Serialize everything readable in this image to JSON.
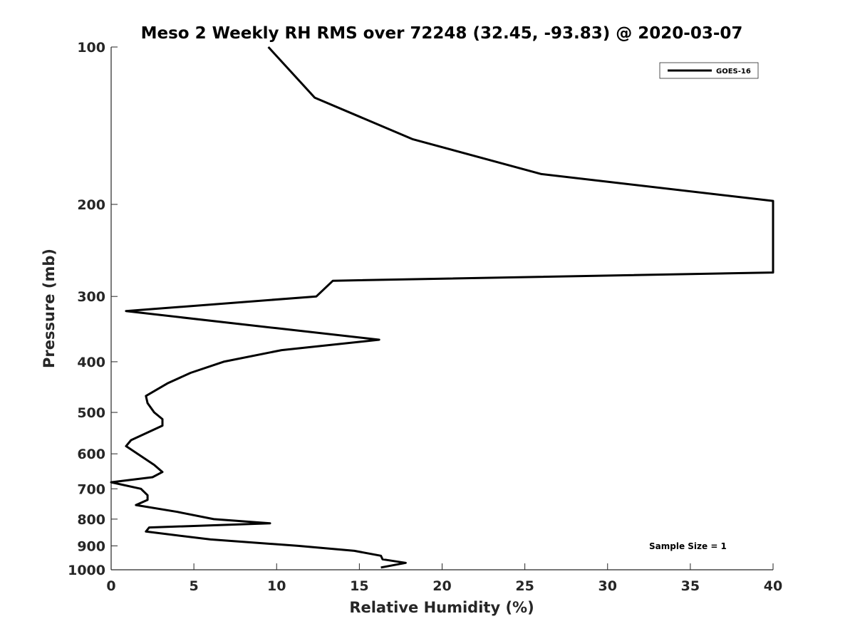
{
  "chart_data": {
    "type": "line",
    "title": "Meso 2 Weekly RH RMS over 72248 (32.45, -93.83) @ 2020-03-07",
    "xlabel": "Relative Humidity (%)",
    "ylabel": "Pressure (mb)",
    "xlim": [
      0,
      40
    ],
    "ylim": [
      100,
      1000
    ],
    "y_scale": "log",
    "y_reversed": true,
    "grid": false,
    "legend_position": "top-right",
    "x_ticks": [
      0,
      5,
      10,
      15,
      20,
      25,
      30,
      35,
      40
    ],
    "y_ticks": [
      100,
      200,
      300,
      400,
      500,
      600,
      700,
      800,
      900,
      1000
    ],
    "annotation": "Sample Size = 1",
    "series": [
      {
        "name": "GOES-16",
        "color": "#000000",
        "points": [
          [
            9.5,
            100
          ],
          [
            12.3,
            125
          ],
          [
            18.2,
            150
          ],
          [
            26.0,
            175
          ],
          [
            40.0,
            197
          ],
          [
            40.0,
            270
          ],
          [
            13.4,
            280
          ],
          [
            12.4,
            300
          ],
          [
            0.9,
            320
          ],
          [
            10.0,
            345
          ],
          [
            16.2,
            363
          ],
          [
            10.3,
            380
          ],
          [
            6.8,
            400
          ],
          [
            4.8,
            420
          ],
          [
            3.4,
            440
          ],
          [
            2.1,
            465
          ],
          [
            2.2,
            480
          ],
          [
            2.6,
            500
          ],
          [
            3.1,
            515
          ],
          [
            3.1,
            530
          ],
          [
            1.2,
            565
          ],
          [
            0.9,
            580
          ],
          [
            1.6,
            600
          ],
          [
            2.6,
            630
          ],
          [
            3.1,
            650
          ],
          [
            2.5,
            665
          ],
          [
            0.0,
            680
          ],
          [
            1.8,
            700
          ],
          [
            2.2,
            720
          ],
          [
            2.2,
            735
          ],
          [
            1.5,
            752
          ],
          [
            4.0,
            775
          ],
          [
            6.2,
            800
          ],
          [
            9.6,
            815
          ],
          [
            2.3,
            830
          ],
          [
            2.1,
            845
          ],
          [
            6.0,
            875
          ],
          [
            11.3,
            900
          ],
          [
            14.7,
            920
          ],
          [
            16.3,
            940
          ],
          [
            16.4,
            955
          ],
          [
            17.8,
            970
          ],
          [
            16.3,
            990
          ]
        ]
      }
    ]
  }
}
